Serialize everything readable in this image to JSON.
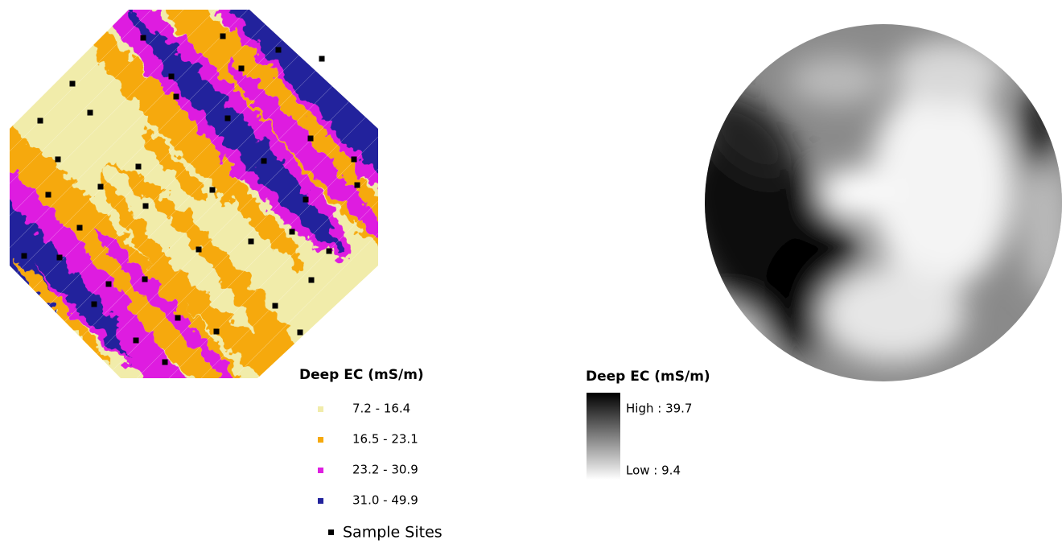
{
  "left_map": {
    "legend_title": "Deep EC (mS/m)",
    "classes": [
      {
        "label": "7.2 - 16.4",
        "color": "#f1ecaa"
      },
      {
        "label": "16.5 - 23.1",
        "color": "#f6a90c"
      },
      {
        "label": "23.2 - 30.9",
        "color": "#de1fe0"
      },
      {
        "label": "31.0 - 49.9",
        "color": "#22239c"
      }
    ],
    "sample_sites": "Sample Sites"
  },
  "right_map": {
    "legend_title": "Deep EC (mS/m)",
    "high_label": "High : 39.7",
    "low_label": "Low : 9.4"
  }
}
